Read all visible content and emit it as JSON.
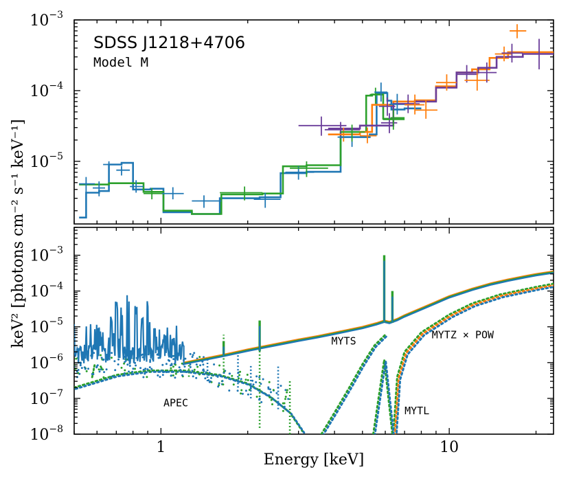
{
  "chart_data": [
    {
      "type": "line",
      "panel": "top",
      "title": "SDSS J1218+4706",
      "subtitle": "Model M",
      "xscale": "log",
      "yscale": "log",
      "xlim": [
        0.5,
        23
      ],
      "ylim": [
        1.3e-06,
        0.001
      ],
      "ytick_values": [
        1e-05,
        0.0001,
        0.001
      ],
      "ytick_labels": [
        {
          "base": "10",
          "exp": "−5"
        },
        {
          "base": "10",
          "exp": "−4"
        },
        {
          "base": "10",
          "exp": "−3"
        }
      ],
      "colors": {
        "blue": "#1f77b4",
        "green": "#2ca02c",
        "orange": "#ff7f0e",
        "purple": "#6a3d9a"
      },
      "data_points": [
        {
          "color": "blue",
          "x": 0.55,
          "y": 4.8e-06,
          "xerr": [
            0.52,
            0.59
          ],
          "yerr": [
            3.6e-06,
            6e-06
          ]
        },
        {
          "color": "blue",
          "x": 0.61,
          "y": 4.2e-06,
          "xerr": [
            0.58,
            0.64
          ],
          "yerr": [
            3.2e-06,
            5.2e-06
          ]
        },
        {
          "color": "blue",
          "x": 0.66,
          "y": 9e-06,
          "xerr": [
            0.63,
            0.69
          ],
          "yerr": [
            7.8e-06,
            1e-05
          ]
        },
        {
          "color": "blue",
          "x": 0.73,
          "y": 7.5e-06,
          "xerr": [
            0.7,
            0.78
          ],
          "yerr": [
            6.3e-06,
            8.6e-06
          ]
        },
        {
          "color": "blue",
          "x": 0.82,
          "y": 4.4e-06,
          "xerr": [
            0.78,
            0.87
          ],
          "yerr": [
            3.6e-06,
            5.4e-06
          ]
        },
        {
          "color": "green",
          "x": 0.93,
          "y": 3.5e-06,
          "xerr": [
            0.87,
            1.02
          ],
          "yerr": [
            2.9e-06,
            4.2e-06
          ]
        },
        {
          "color": "blue",
          "x": 1.1,
          "y": 3.5e-06,
          "xerr": [
            1.01,
            1.2
          ],
          "yerr": [
            2.9e-06,
            4.3e-06
          ]
        },
        {
          "color": "blue",
          "x": 1.41,
          "y": 2.75e-06,
          "xerr": [
            1.28,
            1.62
          ],
          "yerr": [
            2.2e-06,
            3.3e-06
          ]
        },
        {
          "color": "green",
          "x": 1.95,
          "y": 3.6e-06,
          "xerr": [
            1.6,
            2.25
          ],
          "yerr": [
            2.8e-06,
            4.4e-06
          ]
        },
        {
          "color": "blue",
          "x": 2.3,
          "y": 2.9e-06,
          "xerr": [
            2.1,
            2.6
          ],
          "yerr": [
            2.2e-06,
            3.6e-06
          ]
        },
        {
          "color": "blue",
          "x": 3.0,
          "y": 7e-06,
          "xerr": [
            2.7,
            3.4
          ],
          "yerr": [
            5.5e-06,
            8.5e-06
          ]
        },
        {
          "color": "green",
          "x": 3.2,
          "y": 8e-06,
          "xerr": [
            2.8,
            3.8
          ],
          "yerr": [
            6e-06,
            1e-05
          ]
        },
        {
          "color": "purple",
          "x": 3.6,
          "y": 3.2e-05,
          "xerr": [
            3.0,
            4.4
          ],
          "yerr": [
            2.3e-05,
            4.3e-05
          ]
        },
        {
          "color": "purple",
          "x": 4.2,
          "y": 2.8e-05,
          "xerr": [
            3.7,
            4.9
          ],
          "yerr": [
            2.1e-05,
            3.6e-05
          ]
        },
        {
          "color": "orange",
          "x": 4.3,
          "y": 2.4e-05,
          "xerr": [
            3.8,
            4.9
          ],
          "yerr": [
            1.9e-05,
            3e-05
          ]
        },
        {
          "color": "blue",
          "x": 4.6,
          "y": 2.2e-05,
          "xerr": [
            4.1,
            5.1
          ],
          "yerr": [
            1.6e-05,
            2.8e-05
          ]
        },
        {
          "color": "green",
          "x": 4.6,
          "y": 2.6e-05,
          "xerr": [
            4.2,
            5.1
          ],
          "yerr": [
            1.9e-05,
            3.3e-05
          ]
        },
        {
          "color": "orange",
          "x": 5.2,
          "y": 2.3e-05,
          "xerr": [
            4.9,
            5.6
          ],
          "yerr": [
            1.8e-05,
            3e-05
          ]
        },
        {
          "color": "green",
          "x": 5.55,
          "y": 8.8e-05,
          "xerr": [
            5.3,
            5.9
          ],
          "yerr": [
            6.5e-05,
            0.00011
          ]
        },
        {
          "color": "blue",
          "x": 5.8,
          "y": 9.5e-05,
          "xerr": [
            5.5,
            6.1
          ],
          "yerr": [
            7e-05,
            0.00013
          ]
        },
        {
          "color": "purple",
          "x": 6.1,
          "y": 6e-05,
          "xerr": [
            5.7,
            6.5
          ],
          "yerr": [
            4.4e-05,
            8e-05
          ]
        },
        {
          "color": "purple",
          "x": 6.2,
          "y": 3.5e-05,
          "xerr": [
            5.8,
            6.6
          ],
          "yerr": [
            2.5e-05,
            4.8e-05
          ]
        },
        {
          "color": "blue",
          "x": 6.6,
          "y": 6.4e-05,
          "xerr": [
            6.2,
            7.1
          ],
          "yerr": [
            4.6e-05,
            9e-05
          ]
        },
        {
          "color": "green",
          "x": 6.4,
          "y": 3.9e-05,
          "xerr": [
            5.9,
            7.0
          ],
          "yerr": [
            2.8e-05,
            5.4e-05
          ]
        },
        {
          "color": "purple",
          "x": 7.2,
          "y": 6.5e-05,
          "xerr": [
            6.6,
            7.9
          ],
          "yerr": [
            4.8e-05,
            8.8e-05
          ]
        },
        {
          "color": "orange",
          "x": 7.6,
          "y": 6.3e-05,
          "xerr": [
            7.0,
            8.2
          ],
          "yerr": [
            4.6e-05,
            8.8e-05
          ]
        },
        {
          "color": "orange",
          "x": 8.3,
          "y": 5.3e-05,
          "xerr": [
            7.6,
            9.1
          ],
          "yerr": [
            4e-05,
            7.2e-05
          ]
        },
        {
          "color": "orange",
          "x": 9.8,
          "y": 0.00013,
          "xerr": [
            9.0,
            10.6
          ],
          "yerr": [
            0.0001,
            0.00017
          ]
        },
        {
          "color": "purple",
          "x": 11.5,
          "y": 0.00017,
          "xerr": [
            10.6,
            12.6
          ],
          "yerr": [
            0.00013,
            0.00023
          ]
        },
        {
          "color": "orange",
          "x": 12.5,
          "y": 0.00014,
          "xerr": [
            11.3,
            13.8
          ],
          "yerr": [
            0.0001,
            0.0002
          ]
        },
        {
          "color": "purple",
          "x": 13.5,
          "y": 0.00018,
          "xerr": [
            12.5,
            14.6
          ],
          "yerr": [
            0.00013,
            0.00025
          ]
        },
        {
          "color": "orange",
          "x": 15.5,
          "y": 0.00033,
          "xerr": [
            14.4,
            16.5
          ],
          "yerr": [
            0.00026,
            0.00042
          ]
        },
        {
          "color": "orange",
          "x": 17.2,
          "y": 0.0007,
          "xerr": [
            16.2,
            18.5
          ],
          "yerr": [
            0.00055,
            0.00087
          ]
        },
        {
          "color": "purple",
          "x": 16.5,
          "y": 0.00034,
          "xerr": [
            15.2,
            18.0
          ],
          "yerr": [
            0.00025,
            0.00046
          ]
        },
        {
          "color": "purple",
          "x": 20.5,
          "y": 0.00033,
          "xerr": [
            18.5,
            22.8
          ],
          "yerr": [
            0.0002,
            0.00054
          ]
        }
      ],
      "model_steps": [
        {
          "color": "blue",
          "edges": [
            0.52,
            0.55,
            0.61,
            0.66,
            0.73,
            0.8,
            0.92,
            1.02,
            1.28,
            1.6,
            2.2,
            2.6,
            3.2,
            4.2,
            5.3,
            5.6,
            6.1,
            6.3,
            7.0,
            8.0
          ],
          "values": [
            1.6e-06,
            3.6e-06,
            3.8e-06,
            9e-06,
            9.5e-06,
            4e-06,
            4.1e-06,
            1.9e-06,
            1.8e-06,
            3e-06,
            3.1e-06,
            6.8e-06,
            7.1e-06,
            2.2e-05,
            2.4e-05,
            9.2e-05,
            7.2e-05,
            5.4e-05,
            5.6e-05
          ]
        },
        {
          "color": "green",
          "edges": [
            0.52,
            0.66,
            0.87,
            1.02,
            1.28,
            1.62,
            2.25,
            2.65,
            3.2,
            4.2,
            5.15,
            5.4,
            5.9,
            6.3,
            7.0
          ],
          "values": [
            4.7e-06,
            4.9e-06,
            3.7e-06,
            2e-06,
            1.8e-06,
            3.4e-06,
            3.5e-06,
            8.5e-06,
            8.8e-06,
            2.6e-05,
            8.5e-05,
            8.8e-05,
            4e-05,
            4.1e-05
          ]
        },
        {
          "color": "orange",
          "edges": [
            3.8,
            4.9,
            5.4,
            6.4,
            7.6,
            9.0,
            10.6,
            12.0,
            13.8,
            16.0,
            18.5,
            23.0
          ],
          "values": [
            2.4e-05,
            2.6e-05,
            6.3e-05,
            7e-05,
            7.3e-05,
            0.000115,
            0.00018,
            0.0002,
            0.00029,
            0.00035,
            0.00035
          ]
        },
        {
          "color": "purple",
          "edges": [
            3.8,
            4.9,
            6.4,
            7.6,
            9.0,
            10.6,
            12.6,
            14.6,
            18.0,
            23.0
          ],
          "values": [
            2.9e-05,
            3.2e-05,
            6.5e-05,
            7e-05,
            0.00011,
            0.00018,
            0.00021,
            0.0003,
            0.00033
          ]
        }
      ]
    },
    {
      "type": "line",
      "panel": "bottom",
      "xscale": "log",
      "yscale": "log",
      "xlim": [
        0.5,
        23
      ],
      "ylim": [
        1e-08,
        0.006
      ],
      "xlabel": "Energy [keV]",
      "ylabel": "keV² [photons cm⁻² s⁻¹ keV⁻¹]",
      "xtick_values": [
        1,
        10
      ],
      "xtick_labels": [
        "1",
        "10"
      ],
      "ytick_values": [
        1e-08,
        1e-07,
        1e-06,
        1e-05,
        0.0001,
        0.001
      ],
      "ytick_labels": [
        {
          "base": "10",
          "exp": "−8"
        },
        {
          "base": "10",
          "exp": "−7"
        },
        {
          "base": "10",
          "exp": "−6"
        },
        {
          "base": "10",
          "exp": "−5"
        },
        {
          "base": "10",
          "exp": "−4"
        },
        {
          "base": "10",
          "exp": "−3"
        }
      ],
      "annotations": [
        {
          "text": "APEC",
          "x": 1.02,
          "y": 6e-08
        },
        {
          "text": "MYTS",
          "x": 3.9,
          "y": 3.2e-06
        },
        {
          "text": "MYTZ × POW",
          "x": 8.7,
          "y": 4.8e-06
        },
        {
          "text": "MYTL",
          "x": 7.0,
          "y": 3.6e-08
        }
      ],
      "total_model": {
        "continuum": [
          [
            1.2,
            9e-07
          ],
          [
            1.65,
            1.5e-06
          ],
          [
            2.0,
            2.1e-06
          ],
          [
            2.5,
            3e-06
          ],
          [
            3.0,
            4e-06
          ],
          [
            3.5,
            5e-06
          ],
          [
            4.0,
            6.2e-06
          ],
          [
            5.0,
            9e-06
          ],
          [
            5.6,
            1.15e-05
          ],
          [
            5.95,
            1.35e-05
          ],
          [
            6.2,
            1.25e-05
          ],
          [
            6.6,
            1.5e-05
          ],
          [
            7.0,
            1.9e-05
          ],
          [
            8.0,
            3e-05
          ],
          [
            9.0,
            4.5e-05
          ],
          [
            10.0,
            6.5e-05
          ],
          [
            12.0,
            0.000105
          ],
          [
            14.0,
            0.00015
          ],
          [
            16.0,
            0.00019
          ],
          [
            18.0,
            0.00023
          ],
          [
            20.0,
            0.00027
          ],
          [
            23.0,
            0.00032
          ]
        ],
        "lines": [
          {
            "x": 5.95,
            "y": 0.001
          },
          {
            "x": 6.35,
            "y": 0.0001
          },
          {
            "x": 1.65,
            "y": 4e-06
          },
          {
            "x": 2.2,
            "y": 1.5e-05
          }
        ],
        "apec_forest": {
          "xrange": [
            0.5,
            1.2
          ],
          "floor": 9e-07,
          "peaks": [
            [
              0.6,
              1.5e-05
            ],
            [
              0.67,
              2.5e-05
            ],
            [
              0.7,
              6e-05
            ],
            [
              0.73,
              4e-05
            ],
            [
              0.77,
              0.0001
            ],
            [
              0.82,
              4e-05
            ],
            [
              0.86,
              2e-05
            ],
            [
              0.9,
              6e-05
            ],
            [
              0.95,
              1.5e-05
            ],
            [
              1.02,
              8e-06
            ],
            [
              1.1,
              5e-06
            ]
          ]
        }
      },
      "components": [
        {
          "name": "APEC",
          "style": "dotted",
          "points": [
            [
              0.5,
              2e-07
            ],
            [
              0.7,
              4.5e-07
            ],
            [
              0.9,
              6e-07
            ],
            [
              1.2,
              6e-07
            ],
            [
              1.6,
              4.5e-07
            ],
            [
              2.0,
              2.6e-07
            ],
            [
              2.4,
              1.1e-07
            ],
            [
              2.8,
              4e-08
            ],
            [
              3.1,
              1.2e-08
            ]
          ]
        },
        {
          "name": "MYTS",
          "style": "dotted",
          "points": [
            [
              3.6,
              1e-08
            ],
            [
              4.0,
              4e-08
            ],
            [
              4.5,
              2e-07
            ],
            [
              5.0,
              9e-07
            ],
            [
              5.5,
              3e-06
            ],
            [
              6.0,
              6e-06
            ]
          ]
        },
        {
          "name": "MYTZ × POW",
          "style": "dotted",
          "points": [
            [
              6.4,
              1e-08
            ],
            [
              6.6,
              4e-07
            ],
            [
              7.0,
              2e-06
            ],
            [
              8.0,
              7e-06
            ],
            [
              10.0,
              2.2e-05
            ],
            [
              12.0,
              4.5e-05
            ],
            [
              15.0,
              8e-05
            ],
            [
              20.0,
              0.00013
            ],
            [
              23.0,
              0.00016
            ]
          ]
        },
        {
          "name": "MYTL",
          "style": "dotted",
          "points": [
            [
              5.45,
              1e-08
            ],
            [
              5.95,
              1.2e-06
            ],
            [
              6.35,
              1e-08
            ]
          ]
        }
      ]
    }
  ]
}
